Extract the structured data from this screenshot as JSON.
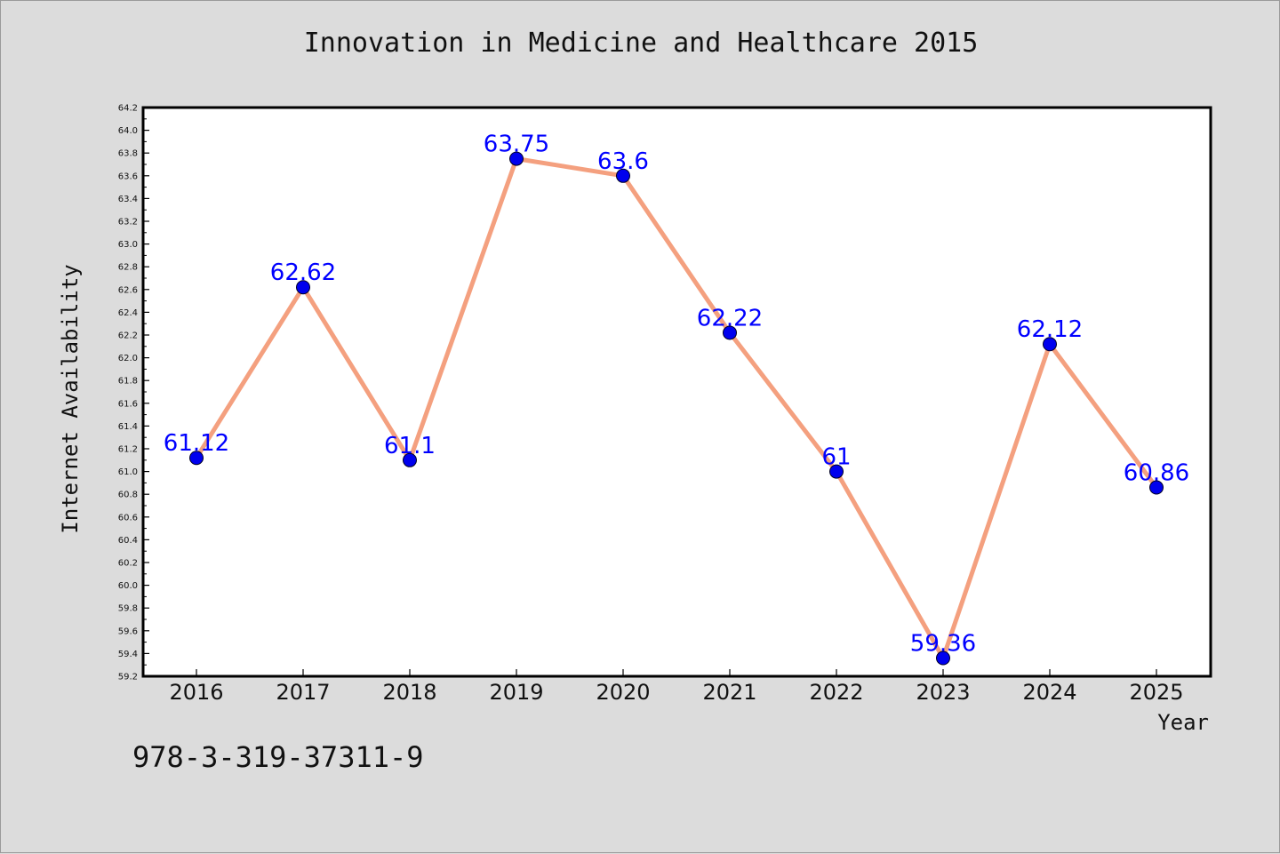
{
  "title": "Innovation in Medicine and Healthcare 2015",
  "footer_text": "978-3-319-37311-9",
  "chart_data": {
    "type": "line",
    "title": "Innovation in Medicine and Healthcare 2015",
    "xlabel": "Year",
    "ylabel": "Internet Availability",
    "categories": [
      "2016",
      "2017",
      "2018",
      "2019",
      "2020",
      "2021",
      "2022",
      "2023",
      "2024",
      "2025"
    ],
    "series": [
      {
        "values": [
          61.12,
          62.62,
          61.1,
          63.75,
          63.6,
          62.22,
          61,
          59.36,
          62.12,
          60.86
        ],
        "labels": [
          "61.12",
          "62.62",
          "61.1",
          "63.75",
          "63.6",
          "62.22",
          "61",
          "59.36",
          "62.12",
          "60.86"
        ]
      }
    ],
    "ylim": [
      59.2,
      64.2
    ],
    "yticks": [
      "59.2",
      "59.4",
      "59.6",
      "59.8",
      "60.0",
      "60.2",
      "60.4",
      "60.6",
      "60.8",
      "61.0",
      "61.2",
      "61.4",
      "61.6",
      "61.8",
      "62.0",
      "62.2",
      "62.4",
      "62.6",
      "62.8",
      "63.0",
      "63.2",
      "63.4",
      "63.6",
      "63.8",
      "64.0",
      "64.2"
    ],
    "grid": false,
    "legend": "none",
    "colors": {
      "line": "#f4a07f",
      "marker": "#0000ee",
      "label": "#0000ff",
      "frame": "#000000",
      "plot_bg": "#ffffff"
    }
  }
}
